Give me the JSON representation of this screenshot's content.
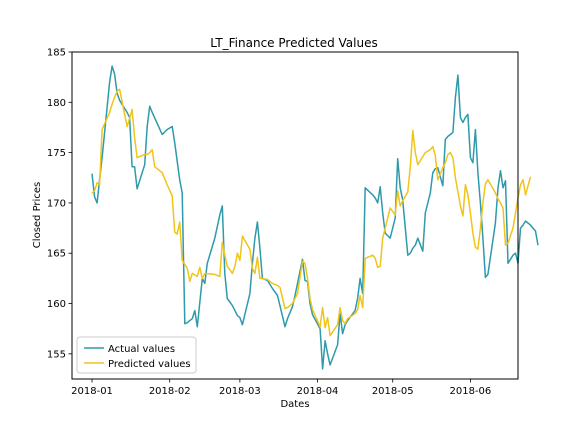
{
  "chart_data": {
    "type": "line",
    "title": "LT_Finance Predicted Values",
    "xlabel": "Dates",
    "ylabel": "Closed Prices",
    "ylim": [
      152.5,
      185
    ],
    "xlim": [
      "2017-12-24",
      "2018-06-20"
    ],
    "x_ticks": [
      "2018-01",
      "2018-02",
      "2018-03",
      "2018-04",
      "2018-05",
      "2018-06"
    ],
    "x_tick_dates": [
      "2018-01-01",
      "2018-02-01",
      "2018-03-01",
      "2018-04-01",
      "2018-05-01",
      "2018-06-01"
    ],
    "y_ticks": [
      155,
      160,
      165,
      170,
      175,
      180,
      185
    ],
    "grid": false,
    "legend_position": "lower-left",
    "series": [
      {
        "name": "Actual values",
        "color": "#2e9aaa",
        "points": [
          [
            "2018-01-01",
            172.9
          ],
          [
            "2018-01-02",
            170.6
          ],
          [
            "2018-01-03",
            170.0
          ],
          [
            "2018-01-04",
            172.3
          ],
          [
            "2018-01-05",
            174.5
          ],
          [
            "2018-01-08",
            182.0
          ],
          [
            "2018-01-09",
            183.6
          ],
          [
            "2018-01-10",
            182.8
          ],
          [
            "2018-01-11",
            180.9
          ],
          [
            "2018-01-12",
            180.2
          ],
          [
            "2018-01-15",
            179.0
          ],
          [
            "2018-01-16",
            178.5
          ],
          [
            "2018-01-17",
            173.6
          ],
          [
            "2018-01-18",
            173.6
          ],
          [
            "2018-01-19",
            171.4
          ],
          [
            "2018-01-22",
            173.8
          ],
          [
            "2018-01-23",
            177.6
          ],
          [
            "2018-01-24",
            179.6
          ],
          [
            "2018-01-25",
            179.0
          ],
          [
            "2018-01-29",
            176.8
          ],
          [
            "2018-01-31",
            177.3
          ],
          [
            "2018-02-02",
            177.6
          ],
          [
            "2018-02-03",
            176.0
          ],
          [
            "2018-02-05",
            172.3
          ],
          [
            "2018-02-06",
            171.0
          ],
          [
            "2018-02-07",
            158.0
          ],
          [
            "2018-02-08",
            158.1
          ],
          [
            "2018-02-09",
            158.3
          ],
          [
            "2018-02-10",
            158.5
          ],
          [
            "2018-02-11",
            159.3
          ],
          [
            "2018-02-12",
            157.7
          ],
          [
            "2018-02-14",
            162.5
          ],
          [
            "2018-02-15",
            162.0
          ],
          [
            "2018-02-16",
            164.0
          ],
          [
            "2018-02-19",
            166.5
          ],
          [
            "2018-02-21",
            168.8
          ],
          [
            "2018-02-22",
            169.7
          ],
          [
            "2018-02-23",
            163.0
          ],
          [
            "2018-02-24",
            160.5
          ],
          [
            "2018-02-26",
            159.8
          ],
          [
            "2018-02-27",
            159.3
          ],
          [
            "2018-02-28",
            158.8
          ],
          [
            "2018-03-01",
            158.6
          ],
          [
            "2018-03-02",
            157.9
          ],
          [
            "2018-03-05",
            161.0
          ],
          [
            "2018-03-06",
            164.0
          ],
          [
            "2018-03-07",
            166.5
          ],
          [
            "2018-03-08",
            168.1
          ],
          [
            "2018-03-09",
            165.5
          ],
          [
            "2018-03-10",
            162.5
          ],
          [
            "2018-03-12",
            162.3
          ],
          [
            "2018-03-14",
            161.5
          ],
          [
            "2018-03-16",
            160.8
          ],
          [
            "2018-03-19",
            157.7
          ],
          [
            "2018-03-20",
            158.5
          ],
          [
            "2018-03-22",
            159.7
          ],
          [
            "2018-03-23",
            160.8
          ],
          [
            "2018-03-26",
            164.4
          ],
          [
            "2018-03-27",
            162.3
          ],
          [
            "2018-03-28",
            162.2
          ],
          [
            "2018-03-29",
            160.0
          ],
          [
            "2018-03-30",
            158.9
          ],
          [
            "2018-04-02",
            157.5
          ],
          [
            "2018-04-03",
            153.5
          ],
          [
            "2018-04-04",
            156.3
          ],
          [
            "2018-04-05",
            155.0
          ],
          [
            "2018-04-06",
            153.9
          ],
          [
            "2018-04-09",
            155.9
          ],
          [
            "2018-04-10",
            159.0
          ],
          [
            "2018-04-11",
            157.0
          ],
          [
            "2018-04-12",
            157.9
          ],
          [
            "2018-04-13",
            158.3
          ],
          [
            "2018-04-16",
            159.3
          ],
          [
            "2018-04-17",
            160.5
          ],
          [
            "2018-04-18",
            162.5
          ],
          [
            "2018-04-19",
            161.0
          ],
          [
            "2018-04-20",
            171.5
          ],
          [
            "2018-04-23",
            170.8
          ],
          [
            "2018-04-24",
            170.5
          ],
          [
            "2018-04-25",
            170.0
          ],
          [
            "2018-04-26",
            171.6
          ],
          [
            "2018-04-27",
            169.0
          ],
          [
            "2018-04-28",
            167.0
          ],
          [
            "2018-04-30",
            166.5
          ],
          [
            "2018-05-02",
            168.5
          ],
          [
            "2018-05-03",
            174.4
          ],
          [
            "2018-05-04",
            171.5
          ],
          [
            "2018-05-05",
            170.3
          ],
          [
            "2018-05-07",
            164.8
          ],
          [
            "2018-05-08",
            165.0
          ],
          [
            "2018-05-09",
            165.5
          ],
          [
            "2018-05-10",
            165.8
          ],
          [
            "2018-05-11",
            166.5
          ],
          [
            "2018-05-13",
            165.2
          ],
          [
            "2018-05-14",
            169.0
          ],
          [
            "2018-05-16",
            171.0
          ],
          [
            "2018-05-17",
            173.0
          ],
          [
            "2018-05-18",
            173.4
          ],
          [
            "2018-05-19",
            173.5
          ],
          [
            "2018-05-21",
            171.7
          ],
          [
            "2018-05-22",
            176.3
          ],
          [
            "2018-05-23",
            176.6
          ],
          [
            "2018-05-24",
            176.8
          ],
          [
            "2018-05-25",
            177.0
          ],
          [
            "2018-05-26",
            180.5
          ],
          [
            "2018-05-27",
            182.7
          ],
          [
            "2018-05-28",
            178.5
          ],
          [
            "2018-05-29",
            178.0
          ],
          [
            "2018-05-30",
            178.5
          ],
          [
            "2018-05-31",
            178.8
          ],
          [
            "2018-06-01",
            174.5
          ],
          [
            "2018-06-02",
            174.0
          ],
          [
            "2018-06-03",
            177.3
          ],
          [
            "2018-06-04",
            173.0
          ],
          [
            "2018-06-05",
            170.0
          ],
          [
            "2018-06-06",
            166.5
          ],
          [
            "2018-06-07",
            162.6
          ],
          [
            "2018-06-08",
            162.9
          ],
          [
            "2018-06-11",
            168.0
          ],
          [
            "2018-06-12",
            171.5
          ],
          [
            "2018-06-13",
            173.2
          ],
          [
            "2018-06-14",
            171.5
          ],
          [
            "2018-06-15",
            172.2
          ],
          [
            "2018-06-16",
            164.0
          ],
          [
            "2018-06-18",
            164.8
          ],
          [
            "2018-06-19",
            165.0
          ],
          [
            "2018-06-20",
            164.0
          ],
          [
            "2018-06-21",
            167.5
          ],
          [
            "2018-06-22",
            167.8
          ],
          [
            "2018-06-23",
            168.2
          ],
          [
            "2018-06-25",
            167.8
          ],
          [
            "2018-06-27",
            167.2
          ],
          [
            "2018-06-28",
            165.8
          ]
        ]
      },
      {
        "name": "Predicted values",
        "color": "#f0c419",
        "points": [
          [
            "2018-01-01",
            171.0
          ],
          [
            "2018-01-02",
            171.2
          ],
          [
            "2018-01-03",
            172.0
          ],
          [
            "2018-01-04",
            171.8
          ],
          [
            "2018-01-05",
            177.3
          ],
          [
            "2018-01-08",
            179.0
          ],
          [
            "2018-01-09",
            179.8
          ],
          [
            "2018-01-10",
            180.5
          ],
          [
            "2018-01-11",
            181.1
          ],
          [
            "2018-01-12",
            181.3
          ],
          [
            "2018-01-15",
            177.6
          ],
          [
            "2018-01-16",
            178.4
          ],
          [
            "2018-01-17",
            179.3
          ],
          [
            "2018-01-18",
            176.5
          ],
          [
            "2018-01-19",
            174.5
          ],
          [
            "2018-01-22",
            174.8
          ],
          [
            "2018-01-23",
            174.8
          ],
          [
            "2018-01-24",
            175.0
          ],
          [
            "2018-01-25",
            175.3
          ],
          [
            "2018-01-26",
            173.6
          ],
          [
            "2018-01-29",
            173.0
          ],
          [
            "2018-01-31",
            171.8
          ],
          [
            "2018-02-02",
            170.7
          ],
          [
            "2018-02-03",
            167.1
          ],
          [
            "2018-02-04",
            166.9
          ],
          [
            "2018-02-05",
            168.1
          ],
          [
            "2018-02-06",
            164.3
          ],
          [
            "2018-02-08",
            163.5
          ],
          [
            "2018-02-09",
            162.2
          ],
          [
            "2018-02-10",
            163.0
          ],
          [
            "2018-02-12",
            162.7
          ],
          [
            "2018-02-13",
            163.6
          ],
          [
            "2018-02-14",
            162.5
          ],
          [
            "2018-02-15",
            163.0
          ],
          [
            "2018-02-19",
            162.9
          ],
          [
            "2018-02-21",
            162.7
          ],
          [
            "2018-02-22",
            166.1
          ],
          [
            "2018-02-23",
            164.8
          ],
          [
            "2018-02-24",
            163.7
          ],
          [
            "2018-02-26",
            163.0
          ],
          [
            "2018-02-27",
            163.7
          ],
          [
            "2018-02-28",
            165.0
          ],
          [
            "2018-03-01",
            164.3
          ],
          [
            "2018-03-02",
            166.7
          ],
          [
            "2018-03-05",
            165.4
          ],
          [
            "2018-03-06",
            163.5
          ],
          [
            "2018-03-07",
            163.0
          ],
          [
            "2018-03-08",
            164.6
          ],
          [
            "2018-03-09",
            162.5
          ],
          [
            "2018-03-12",
            162.4
          ],
          [
            "2018-03-14",
            162.0
          ],
          [
            "2018-03-16",
            161.8
          ],
          [
            "2018-03-17",
            161.6
          ],
          [
            "2018-03-19",
            159.5
          ],
          [
            "2018-03-20",
            159.6
          ],
          [
            "2018-03-22",
            160.0
          ],
          [
            "2018-03-24",
            161.0
          ],
          [
            "2018-03-26",
            164.2
          ],
          [
            "2018-03-27",
            164.0
          ],
          [
            "2018-03-28",
            162.5
          ],
          [
            "2018-03-29",
            160.5
          ],
          [
            "2018-03-30",
            159.4
          ],
          [
            "2018-04-02",
            157.7
          ],
          [
            "2018-04-03",
            159.6
          ],
          [
            "2018-04-04",
            157.6
          ],
          [
            "2018-04-05",
            158.6
          ],
          [
            "2018-04-06",
            156.8
          ],
          [
            "2018-04-09",
            157.9
          ],
          [
            "2018-04-10",
            159.6
          ],
          [
            "2018-04-11",
            158.3
          ],
          [
            "2018-04-12",
            158.0
          ],
          [
            "2018-04-13",
            158.5
          ],
          [
            "2018-04-16",
            159.0
          ],
          [
            "2018-04-17",
            159.4
          ],
          [
            "2018-04-18",
            160.8
          ],
          [
            "2018-04-19",
            159.6
          ],
          [
            "2018-04-20",
            164.5
          ],
          [
            "2018-04-23",
            164.8
          ],
          [
            "2018-04-24",
            164.5
          ],
          [
            "2018-04-25",
            163.6
          ],
          [
            "2018-04-26",
            163.7
          ],
          [
            "2018-04-27",
            166.5
          ],
          [
            "2018-04-28",
            167.5
          ],
          [
            "2018-04-30",
            169.5
          ],
          [
            "2018-05-02",
            168.8
          ],
          [
            "2018-05-03",
            171.2
          ],
          [
            "2018-05-04",
            169.7
          ],
          [
            "2018-05-05",
            170.2
          ],
          [
            "2018-05-07",
            171.1
          ],
          [
            "2018-05-08",
            173.6
          ],
          [
            "2018-05-09",
            177.2
          ],
          [
            "2018-05-10",
            175.0
          ],
          [
            "2018-05-11",
            173.8
          ],
          [
            "2018-05-14",
            175.0
          ],
          [
            "2018-05-16",
            175.3
          ],
          [
            "2018-05-17",
            175.6
          ],
          [
            "2018-05-18",
            174.7
          ],
          [
            "2018-05-19",
            172.3
          ],
          [
            "2018-05-21",
            173.5
          ],
          [
            "2018-05-22",
            174.0
          ],
          [
            "2018-05-23",
            174.8
          ],
          [
            "2018-05-24",
            175.0
          ],
          [
            "2018-05-25",
            174.5
          ],
          [
            "2018-05-26",
            172.5
          ],
          [
            "2018-05-28",
            169.7
          ],
          [
            "2018-05-29",
            168.7
          ],
          [
            "2018-05-30",
            171.8
          ],
          [
            "2018-05-31",
            170.8
          ],
          [
            "2018-06-01",
            169.0
          ],
          [
            "2018-06-02",
            167.0
          ],
          [
            "2018-06-03",
            165.6
          ],
          [
            "2018-06-04",
            165.4
          ],
          [
            "2018-06-05",
            167.5
          ],
          [
            "2018-06-06",
            170.0
          ],
          [
            "2018-06-07",
            171.9
          ],
          [
            "2018-06-08",
            172.3
          ],
          [
            "2018-06-11",
            171.0
          ],
          [
            "2018-06-12",
            170.4
          ],
          [
            "2018-06-13",
            170.0
          ],
          [
            "2018-06-14",
            169.5
          ],
          [
            "2018-06-15",
            165.8
          ],
          [
            "2018-06-16",
            166.0
          ],
          [
            "2018-06-18",
            167.5
          ],
          [
            "2018-06-19",
            169.0
          ],
          [
            "2018-06-20",
            170.5
          ],
          [
            "2018-06-21",
            171.8
          ],
          [
            "2018-06-22",
            172.3
          ],
          [
            "2018-06-23",
            170.8
          ],
          [
            "2018-06-25",
            172.6
          ]
        ]
      }
    ]
  }
}
